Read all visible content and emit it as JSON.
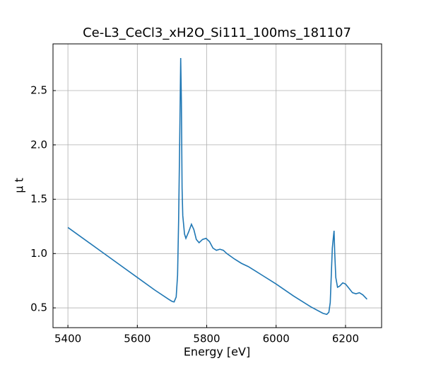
{
  "chart_data": {
    "type": "line",
    "title": "Ce-L3_CeCl3_xH2O_Si111_100ms_181107",
    "xlabel": "Energy [eV]",
    "ylabel": "μ t",
    "x": [
      5400,
      5500,
      5600,
      5650,
      5690,
      5700,
      5706,
      5712,
      5716,
      5719,
      5722,
      5725,
      5727,
      5729,
      5731,
      5736,
      5740,
      5748,
      5756,
      5763,
      5770,
      5778,
      5788,
      5798,
      5808,
      5818,
      5828,
      5838,
      5848,
      5858,
      5880,
      5900,
      5920,
      5940,
      5960,
      6000,
      6050,
      6100,
      6135,
      6146,
      6152,
      6156,
      6159,
      6162,
      6165,
      6167,
      6169,
      6172,
      6177,
      6183,
      6192,
      6200,
      6210,
      6220,
      6230,
      6240,
      6250,
      6262
    ],
    "series": [
      {
        "name": "mu",
        "color": "#1f77b4",
        "values": [
          1.24,
          1.01,
          0.78,
          0.665,
          0.58,
          0.56,
          0.555,
          0.6,
          0.8,
          1.3,
          2.0,
          2.8,
          2.4,
          1.6,
          1.35,
          1.18,
          1.14,
          1.2,
          1.27,
          1.22,
          1.13,
          1.1,
          1.13,
          1.14,
          1.11,
          1.05,
          1.03,
          1.04,
          1.03,
          1.0,
          0.95,
          0.91,
          0.88,
          0.84,
          0.8,
          0.72,
          0.61,
          0.51,
          0.45,
          0.44,
          0.46,
          0.55,
          0.8,
          1.05,
          1.15,
          1.21,
          1.0,
          0.78,
          0.69,
          0.7,
          0.73,
          0.72,
          0.68,
          0.64,
          0.63,
          0.64,
          0.62,
          0.58
        ]
      }
    ],
    "xlim": [
      5357,
      6304
    ],
    "ylim": [
      0.318,
      2.93
    ],
    "xticks": [
      5400,
      5600,
      5800,
      6000,
      6200
    ],
    "yticks": [
      0.5,
      {
        "value": 1.0,
        "label": "1.0"
      },
      1.5,
      {
        "value": 2.0,
        "label": "2.0"
      },
      2.5
    ],
    "grid": true
  }
}
